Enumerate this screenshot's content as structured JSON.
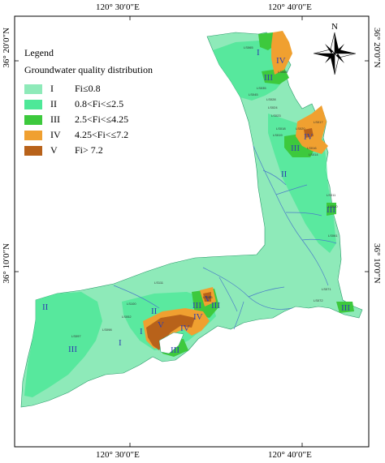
{
  "coordinates": {
    "top_left": "120° 30′0″E",
    "top_right": "120° 40′0″E",
    "bottom_left": "120° 30′0″E",
    "bottom_right": "120° 40′0″E",
    "left_top": "36° 20′0″N",
    "left_bottom": "36° 10′0″N",
    "right_top": "36° 20′0″N",
    "right_bottom": "36° 10′0″N"
  },
  "north_arrow": {
    "label": "N",
    "icon": "north-arrow-icon"
  },
  "legend": {
    "title": "Legend",
    "subtitle": "Groundwater quality distribution",
    "items": [
      {
        "class": "I",
        "range": "Fi≤0.8",
        "color": "#8eeab9"
      },
      {
        "class": "II",
        "range": "0.8<Fi<≤2.5",
        "color": "#4ee898"
      },
      {
        "class": "III",
        "range": "2.5<Fi<≤4.25",
        "color": "#3dc93d"
      },
      {
        "class": "IV",
        "range": "4.25<Fi<≤7.2",
        "color": "#f0a030"
      },
      {
        "class": "V",
        "range": "Fi> 7.2",
        "color": "#b8621a"
      }
    ]
  },
  "zone_labels": [
    "I",
    "III",
    "IV",
    "III",
    "IV",
    "II",
    "III",
    "II",
    "III",
    "I",
    "III",
    "III",
    "V",
    "IV",
    "II",
    "I",
    "III",
    "III",
    "V",
    "IV"
  ],
  "well_labels": [
    "LS065",
    "LS066",
    "LS045",
    "LS035",
    "LS028",
    "LS024",
    "LS023",
    "LS020",
    "LS018",
    "LS019",
    "LS017",
    "LS016",
    "LS014",
    "LS011",
    "LS010",
    "LS061",
    "LS071",
    "LS072",
    "LS097",
    "LS098",
    "LS100",
    "LS111",
    "LS066",
    "LS052"
  ]
}
